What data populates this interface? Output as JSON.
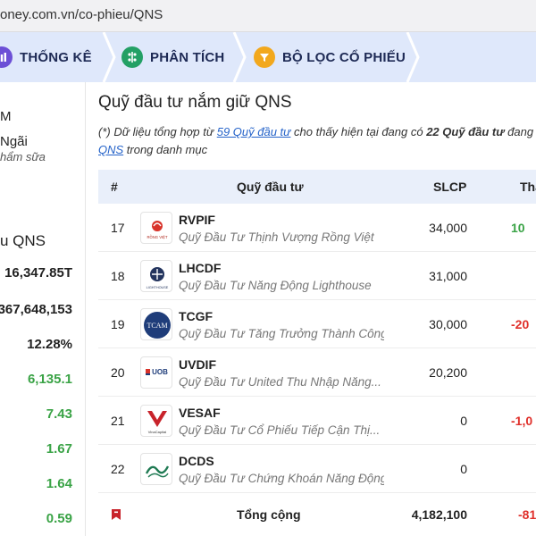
{
  "browser": {
    "url": "oney.com.vn/co-phieu/QNS"
  },
  "nav": {
    "tabs": [
      {
        "label": "THỐNG KÊ",
        "icon": "bar-chart-icon"
      },
      {
        "label": "PHÂN TÍCH",
        "icon": "analysis-icon"
      },
      {
        "label": "BỘ LỌC CỔ PHIẾU",
        "icon": "filter-icon"
      }
    ]
  },
  "sidebar": {
    "line1": "M",
    "line2": "Ngãi",
    "line3": "hẩm sữa",
    "section_title": "u QNS",
    "values": [
      "16,347.85T",
      "367,648,153",
      "12.28%",
      "6,135.1",
      "7.43",
      "1.67",
      "1.64",
      "0.59"
    ],
    "value_colors": [
      "#222222",
      "#222222",
      "#222222",
      "#3aa346",
      "#3aa346",
      "#3aa346",
      "#3aa346",
      "#3aa346"
    ]
  },
  "main": {
    "title": "Quỹ đầu tư nắm giữ QNS",
    "note": {
      "prefix": "(*) Dữ liệu tổng hợp từ ",
      "link1": "59 Quỹ đầu tư",
      "middle": " cho thấy hiện tại đang có ",
      "bold": "22 Quỹ đầu tư",
      "suffix": " đang",
      "link2": "QNS",
      "end": " trong danh mục"
    }
  },
  "table": {
    "headers": {
      "rank": "#",
      "fund": "Quỹ đầu tư",
      "slcp": "SLCP",
      "change": "Tha"
    },
    "rows": [
      {
        "rank": "17",
        "code": "RVPIF",
        "name": "Quỹ Đầu Tư Thịnh Vượng Rồng Việt",
        "slcp": "34,000",
        "change": "10",
        "change_color": "#3aa346",
        "logo": "rong-viet-logo"
      },
      {
        "rank": "18",
        "code": "LHCDF",
        "name": "Quỹ Đầu Tư Năng Động Lighthouse",
        "slcp": "31,000",
        "change": "",
        "change_color": "#222222",
        "logo": "lighthouse-logo"
      },
      {
        "rank": "19",
        "code": "TCGF",
        "name": "Quỹ Đầu Tư Tăng Trưởng Thành Công",
        "slcp": "30,000",
        "change": "-20",
        "change_color": "#e0302b",
        "logo": "tcam-logo"
      },
      {
        "rank": "20",
        "code": "UVDIF",
        "name": "Quỹ Đầu Tư United Thu Nhập Năng...",
        "slcp": "20,200",
        "change": "",
        "change_color": "#222222",
        "logo": "uob-logo"
      },
      {
        "rank": "21",
        "code": "VESAF",
        "name": "Quỹ Đầu Tư Cổ Phiếu Tiếp Cận Thị...",
        "slcp": "0",
        "change": "-1,0",
        "change_color": "#e0302b",
        "logo": "vinacapital-logo"
      },
      {
        "rank": "22",
        "code": "DCDS",
        "name": "Quỹ Đầu Tư Chứng Khoán Năng Động...",
        "slcp": "0",
        "change": "",
        "change_color": "#222222",
        "logo": "dragon-capital-logo"
      }
    ],
    "footer": {
      "label": "Tổng cộng",
      "total": "4,182,100",
      "change": "-81"
    }
  },
  "logo_text": {
    "tcam": "TCAM",
    "uob": "UOB",
    "vina": "VinaCapital",
    "rongviet": "RỒNG VIỆT",
    "lighthouse": "LIGHTHOUSE"
  },
  "colors": {
    "nav_bg": "#dfe8fb",
    "green": "#3aa346",
    "red": "#e0302b",
    "link": "#2563c9"
  }
}
